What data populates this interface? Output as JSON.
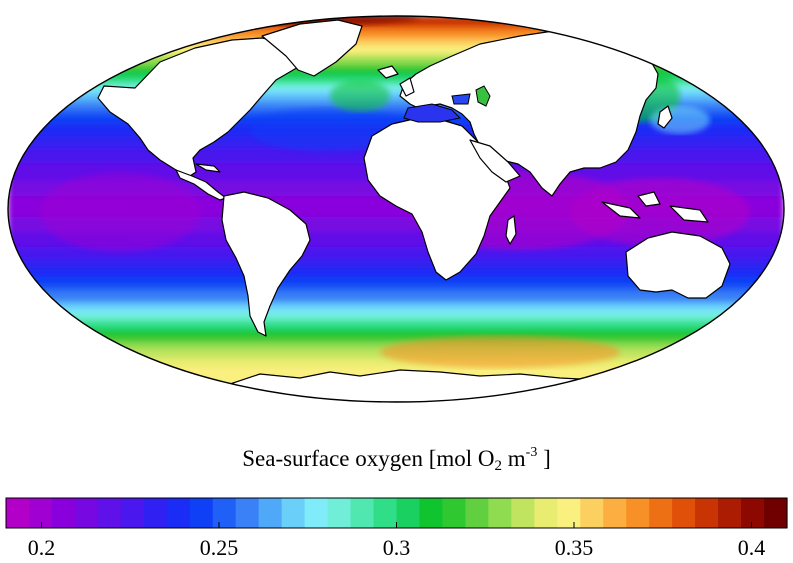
{
  "figure": {
    "projection": "mollweide",
    "variable": "sea-surface oxygen",
    "land_color": "#ffffff",
    "coastline_color": "#000000"
  },
  "colorbar": {
    "title_main": "Sea-surface oxygen [mol O",
    "title_sub": "2",
    "title_mid": " m",
    "title_sup": "-3",
    "title_end": " ]",
    "min": 0.19,
    "max": 0.41,
    "ticks": [
      {
        "value": 0.2,
        "label": "0.2"
      },
      {
        "value": 0.25,
        "label": "0.25"
      },
      {
        "value": 0.3,
        "label": "0.3"
      },
      {
        "value": 0.35,
        "label": "0.35"
      },
      {
        "value": 0.4,
        "label": "0.4"
      }
    ],
    "colors": [
      "#b300c8",
      "#a000d2",
      "#8a00dc",
      "#7808e2",
      "#6010e8",
      "#4a18ee",
      "#3020f2",
      "#1a2cf6",
      "#1040f6",
      "#2060f6",
      "#3a80f6",
      "#50a8f8",
      "#6ad0fa",
      "#80ecfa",
      "#70eed8",
      "#50e8b0",
      "#30de88",
      "#1ad060",
      "#10c430",
      "#30c830",
      "#60d040",
      "#90dc50",
      "#c0e460",
      "#e8ec70",
      "#faf080",
      "#fcd060",
      "#fcae40",
      "#f89028",
      "#ee7014",
      "#e05008",
      "#c83404",
      "#ac1c02",
      "#8c0800",
      "#700000"
    ]
  },
  "chart_data": {
    "type": "heatmap",
    "title": "",
    "value_label": "Sea-surface oxygen [mol O2 m-3]",
    "value_range": [
      0.19,
      0.41
    ],
    "zonal_mean_profile": {
      "latitude": [
        -90,
        -75,
        -65,
        -55,
        -45,
        -35,
        -20,
        0,
        20,
        35,
        45,
        55,
        65,
        80,
        90
      ],
      "value": [
        0.35,
        0.35,
        0.345,
        0.33,
        0.295,
        0.26,
        0.23,
        0.205,
        0.225,
        0.245,
        0.27,
        0.31,
        0.345,
        0.38,
        0.4
      ]
    }
  }
}
